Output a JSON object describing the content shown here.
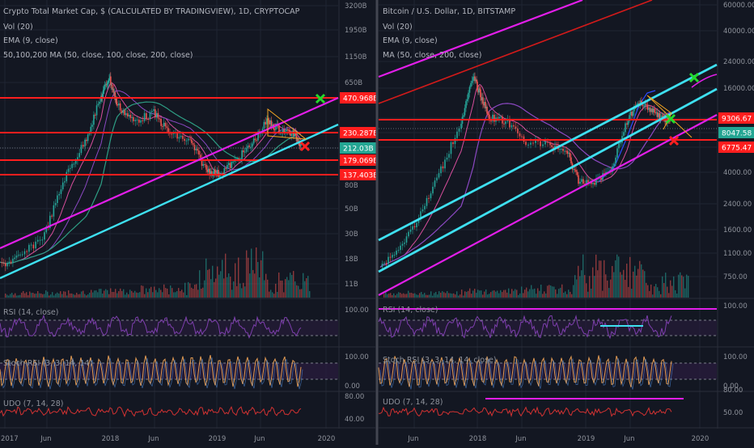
{
  "colors": {
    "background": "#131722",
    "grid": "#1f2433",
    "divider": "#434651",
    "text": "#b2b5be",
    "axis_text": "#8e929b",
    "hline": "#ff1e1e",
    "channel": "#e21ee9",
    "trend": "#3ee0f0",
    "green_x": "#25d82b",
    "red_x": "#ff2020",
    "price_label_bg": "#ff1e1e",
    "current_label_bg": "#24a693",
    "wedge": "#f5a623",
    "rsi": "#7e3fae",
    "stoch": "#e39b53",
    "udo": "#d23232",
    "volume_up": "#26a69a",
    "volume_down": "#ef5350"
  },
  "chart_data": [
    {
      "type": "line",
      "title": "Crypto Total Market Cap, $ (CALCULATED BY TRADINGVIEW), 1D, CRYPTOCAP",
      "legend": [
        "Vol (20)",
        "EMA (9, close)",
        "50,100,200 MA (50, close, 100, close, 200, close)"
      ],
      "price_axis_ticks": [
        "3200B",
        "1950B",
        "1150B",
        "650B",
        "470.968B",
        "230.287B",
        "212.03B",
        "179.069B",
        "137.403B",
        "80B",
        "50B",
        "30B",
        "18B",
        "11B"
      ],
      "horizontal_levels": [
        "470.968B",
        "230.287B",
        "179.069B",
        "137.403B"
      ],
      "current_value": "212.03B",
      "time_axis_ticks": [
        "2017",
        "Jun",
        "2018",
        "Jun",
        "2019",
        "Jun",
        "2020"
      ],
      "series": [
        {
          "name": "Price",
          "x": [
            "2017-01",
            "2017-04",
            "2017-07",
            "2017-10",
            "2017-12",
            "2018-01",
            "2018-03",
            "2018-06",
            "2018-09",
            "2018-12",
            "2019-03",
            "2019-06",
            "2019-08",
            "2019-10"
          ],
          "values": [
            18,
            25,
            75,
            180,
            600,
            760,
            330,
            260,
            220,
            110,
            135,
            350,
            290,
            212
          ]
        }
      ],
      "indicators": [
        {
          "name": "RSI (14, close)",
          "ticks": [
            "100.00"
          ]
        },
        {
          "name": "Stoch RSI (3, 3, 14, 14)",
          "ticks": [
            "100.00",
            "0.00"
          ]
        },
        {
          "name": "UDO (7, 14, 28)",
          "ticks": [
            "80.00",
            "40.00"
          ]
        }
      ]
    },
    {
      "type": "line",
      "title": "Bitcoin / U.S. Dollar, 1D, BITSTAMP",
      "legend": [
        "Vol (20)",
        "EMA (9, close)",
        "MA (50, close, 200, close)"
      ],
      "price_axis_ticks": [
        "60000.00",
        "40000.00",
        "24000.00",
        "16000.00",
        "9306.67",
        "8047.58",
        "6775.47",
        "4000.00",
        "2400.00",
        "1600.00",
        "1100.00",
        "750.00"
      ],
      "horizontal_levels": [
        "9306.67",
        "6775.47"
      ],
      "current_value": "8047.58",
      "time_axis_ticks": [
        "Jun",
        "2018",
        "Jun",
        "2019",
        "Jun",
        "2020"
      ],
      "series": [
        {
          "name": "Price",
          "x": [
            "2017-03",
            "2017-06",
            "2017-09",
            "2017-11",
            "2017-12",
            "2018-02",
            "2018-06",
            "2018-09",
            "2018-12",
            "2019-02",
            "2019-04",
            "2019-06",
            "2019-08",
            "2019-10"
          ],
          "values": [
            1000,
            2600,
            4300,
            7000,
            19000,
            9000,
            6500,
            6500,
            3300,
            3600,
            5200,
            12500,
            10500,
            8047
          ]
        }
      ],
      "indicators": [
        {
          "name": "RSI (14, close)",
          "ticks": [
            "100.00"
          ]
        },
        {
          "name": "Stoch RSI (3, 3, 14, 14, close)",
          "ticks": [
            "100.00",
            "0.00"
          ]
        },
        {
          "name": "UDO (7, 14, 28)",
          "ticks": [
            "80.00",
            "50.00"
          ]
        }
      ]
    }
  ]
}
